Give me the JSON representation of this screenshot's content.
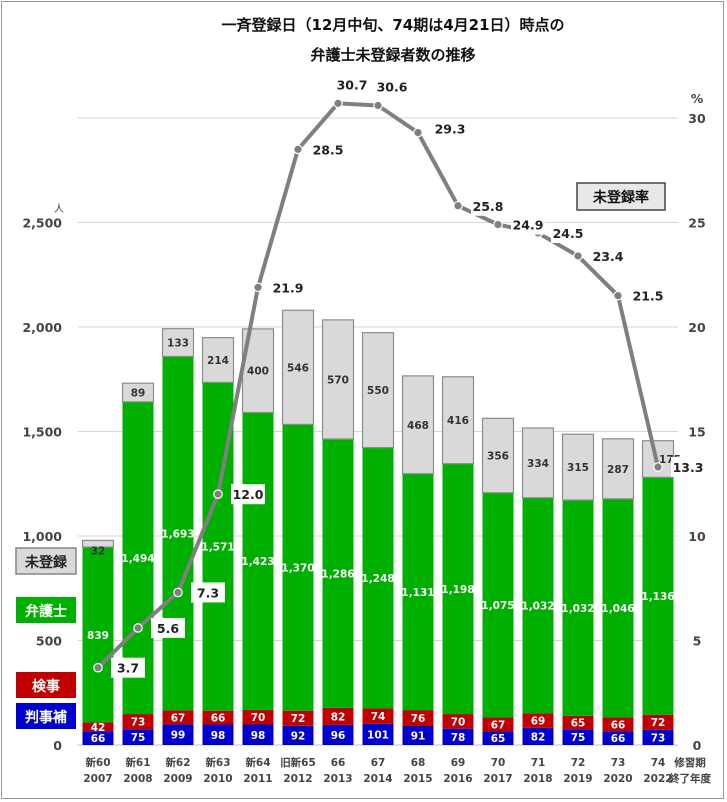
{
  "title_line1": "一斉登録日（12月中旬、74期は4月21日）時点の",
  "title_line2": "弁護士未登録者数の推移",
  "left_unit": "人",
  "right_unit": "%",
  "x_axis_title_line1": "修習期",
  "x_axis_title_line2": "終了年度",
  "rate_label": "未登録率",
  "legend": [
    {
      "label": "未登録",
      "color": "#d9d9d9",
      "text_color": "#222222",
      "border": "#8c8c8c"
    },
    {
      "label": "弁護士",
      "color": "#00b000",
      "text_color": "#ffffff"
    },
    {
      "label": "検事",
      "color": "#c00000",
      "text_color": "#ffffff"
    },
    {
      "label": "判事補",
      "color": "#0000cc",
      "text_color": "#ffffff"
    }
  ],
  "chart_data": {
    "type": "bar",
    "stacked": true,
    "categories": [
      {
        "line1": "新60",
        "line2": "2007"
      },
      {
        "line1": "新61",
        "line2": "2008"
      },
      {
        "line1": "新62",
        "line2": "2009"
      },
      {
        "line1": "新63",
        "line2": "2010"
      },
      {
        "line1": "新64",
        "line2": "2011"
      },
      {
        "line1": "旧新65",
        "line2": "2012"
      },
      {
        "line1": "66",
        "line2": "2013"
      },
      {
        "line1": "67",
        "line2": "2014"
      },
      {
        "line1": "68",
        "line2": "2015"
      },
      {
        "line1": "69",
        "line2": "2016"
      },
      {
        "line1": "70",
        "line2": "2017"
      },
      {
        "line1": "71",
        "line2": "2018"
      },
      {
        "line1": "72",
        "line2": "2019"
      },
      {
        "line1": "73",
        "line2": "2020"
      },
      {
        "line1": "74",
        "line2": "2022"
      }
    ],
    "series": [
      {
        "name": "判事補",
        "color": "#0000cc",
        "values": [
          66,
          75,
          99,
          98,
          98,
          92,
          96,
          101,
          91,
          78,
          65,
          82,
          75,
          66,
          73
        ]
      },
      {
        "name": "検事",
        "color": "#c00000",
        "values": [
          42,
          73,
          67,
          66,
          70,
          72,
          82,
          74,
          76,
          70,
          67,
          69,
          65,
          66,
          72
        ]
      },
      {
        "name": "弁護士",
        "color": "#00b000",
        "values": [
          839,
          1494,
          1693,
          1571,
          1423,
          1370,
          1286,
          1248,
          1131,
          1198,
          1075,
          1032,
          1032,
          1046,
          1136
        ]
      },
      {
        "name": "未登録",
        "color": "#d9d9d9",
        "values": [
          32,
          89,
          133,
          214,
          400,
          546,
          570,
          550,
          468,
          416,
          356,
          334,
          315,
          287,
          175
        ]
      }
    ],
    "line_series": {
      "name": "未登録率",
      "color": "#7f7f7f",
      "axis": "right",
      "values": [
        3.7,
        5.6,
        7.3,
        12.0,
        21.9,
        28.5,
        30.7,
        30.6,
        29.3,
        25.8,
        24.9,
        24.5,
        23.4,
        21.5,
        13.3
      ]
    },
    "y_left": {
      "min": 0,
      "max": 3000,
      "ticks": [
        0,
        500,
        1000,
        1500,
        2000,
        2500
      ],
      "tick_labels": [
        "0",
        "500",
        "1,000",
        "1,500",
        "2,000",
        "2,500"
      ]
    },
    "y_right": {
      "min": 0,
      "max": 30,
      "ticks": [
        0,
        5,
        10,
        15,
        20,
        25,
        30
      ],
      "tick_labels": [
        "0",
        "5",
        "10",
        "15",
        "20",
        "25",
        "30"
      ]
    },
    "grid": true
  }
}
